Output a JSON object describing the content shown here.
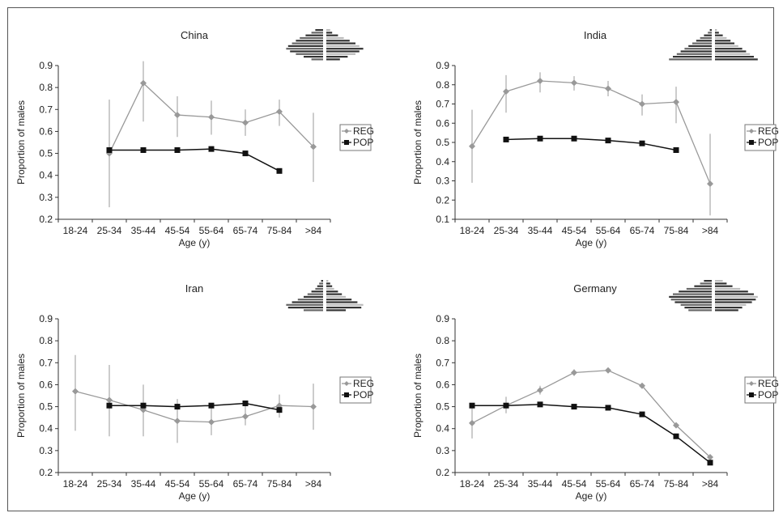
{
  "colors": {
    "REG": "#999999",
    "POP": "#111111",
    "axis": "#333333",
    "frame": "#555555",
    "pyramid_dark": "#333333",
    "pyramid_light": "#bbbbbb"
  },
  "chart_data": [
    {
      "type": "line",
      "title": "China",
      "xlabel": "Age (y)",
      "ylabel": "Proportion of males",
      "categories": [
        "18-24",
        "25-34",
        "35-44",
        "45-54",
        "55-64",
        "65-74",
        "75-84",
        ">84"
      ],
      "ylim": [
        0.2,
        0.9
      ],
      "yticks": [
        "0.2",
        "0.3",
        "0.4",
        "0.5",
        "0.6",
        "0.7",
        "0.8",
        "0.9"
      ],
      "legend": "right",
      "series": [
        {
          "name": "REG",
          "values": [
            null,
            0.5,
            0.82,
            0.675,
            0.665,
            0.64,
            0.69,
            0.53
          ],
          "err_low": [
            null,
            0.255,
            0.645,
            0.575,
            0.585,
            0.58,
            0.625,
            0.37
          ],
          "err_high": [
            null,
            0.745,
            0.92,
            0.76,
            0.74,
            0.7,
            0.745,
            0.685
          ]
        },
        {
          "name": "POP",
          "values": [
            null,
            0.515,
            0.515,
            0.515,
            0.52,
            0.5,
            0.42,
            null
          ]
        }
      ],
      "pyramid": {
        "left": [
          4,
          6,
          9,
          12,
          14,
          16,
          18,
          19,
          17,
          14,
          10,
          6
        ],
        "right": [
          2,
          3,
          6,
          9,
          12,
          15,
          17,
          19,
          17,
          15,
          11,
          7
        ]
      }
    },
    {
      "type": "line",
      "title": "India",
      "xlabel": "Age (y)",
      "ylabel": "Proportion of males",
      "categories": [
        "18-24",
        "25-34",
        "35-44",
        "45-54",
        "55-64",
        "65-74",
        "75-84",
        ">84"
      ],
      "ylim": [
        0.1,
        0.9
      ],
      "yticks": [
        "0.1",
        "0.2",
        "0.3",
        "0.4",
        "0.5",
        "0.6",
        "0.7",
        "0.8",
        "0.9"
      ],
      "legend": "right",
      "series": [
        {
          "name": "REG",
          "values": [
            0.48,
            0.765,
            0.82,
            0.81,
            0.78,
            0.7,
            0.71,
            0.285
          ],
          "err_low": [
            0.29,
            0.655,
            0.76,
            0.77,
            0.74,
            0.64,
            0.6,
            0.12
          ],
          "err_high": [
            0.67,
            0.85,
            0.865,
            0.845,
            0.82,
            0.75,
            0.79,
            0.545
          ]
        },
        {
          "name": "POP",
          "values": [
            null,
            0.515,
            0.52,
            0.52,
            0.51,
            0.495,
            0.46,
            null
          ]
        }
      ],
      "pyramid": {
        "left": [
          1,
          2,
          4,
          6,
          8,
          10,
          12,
          14,
          16,
          18,
          20,
          22
        ],
        "right": [
          1,
          2,
          4,
          6,
          8,
          10,
          12,
          14,
          16,
          18,
          20,
          22
        ]
      }
    },
    {
      "type": "line",
      "title": "Iran",
      "xlabel": "Age (y)",
      "ylabel": "Proportion of males",
      "categories": [
        "18-24",
        "25-34",
        "35-44",
        "45-54",
        "55-64",
        "65-74",
        "75-84",
        ">84"
      ],
      "ylim": [
        0.2,
        0.9
      ],
      "yticks": [
        "0.2",
        "0.3",
        "0.4",
        "0.5",
        "0.6",
        "0.7",
        "0.8",
        "0.9"
      ],
      "legend": "right",
      "series": [
        {
          "name": "REG",
          "values": [
            0.57,
            0.53,
            0.485,
            0.435,
            0.43,
            0.455,
            0.505,
            0.5
          ],
          "err_low": [
            0.39,
            0.365,
            0.365,
            0.335,
            0.37,
            0.415,
            0.45,
            0.395
          ],
          "err_high": [
            0.735,
            0.69,
            0.6,
            0.535,
            0.495,
            0.51,
            0.555,
            0.605
          ]
        },
        {
          "name": "POP",
          "values": [
            null,
            0.505,
            0.505,
            0.5,
            0.505,
            0.515,
            0.485,
            null
          ]
        }
      ],
      "pyramid": {
        "left": [
          1,
          2,
          3,
          4,
          6,
          8,
          10,
          13,
          16,
          19,
          18,
          10
        ],
        "right": [
          1,
          2,
          3,
          4,
          6,
          8,
          10,
          13,
          16,
          19,
          18,
          10
        ]
      }
    },
    {
      "type": "line",
      "title": "Germany",
      "xlabel": "Age (y)",
      "ylabel": "Proportion of males",
      "categories": [
        "18-24",
        "25-34",
        "35-44",
        "45-54",
        "55-64",
        "65-74",
        "75-84",
        ">84"
      ],
      "ylim": [
        0.2,
        0.9
      ],
      "yticks": [
        "0.2",
        "0.3",
        "0.4",
        "0.5",
        "0.6",
        "0.7",
        "0.8",
        "0.9"
      ],
      "legend": "right",
      "series": [
        {
          "name": "REG",
          "values": [
            0.425,
            0.505,
            0.575,
            0.655,
            0.665,
            0.595,
            0.415,
            0.27
          ],
          "err_low": [
            0.355,
            0.47,
            0.555,
            0.64,
            0.655,
            0.585,
            0.405,
            0.26
          ],
          "err_high": [
            0.495,
            0.545,
            0.595,
            0.67,
            0.675,
            0.605,
            0.425,
            0.28
          ]
        },
        {
          "name": "POP",
          "values": [
            0.505,
            0.505,
            0.51,
            0.5,
            0.495,
            0.465,
            0.365,
            0.245
          ]
        }
      ],
      "pyramid": {
        "left": [
          4,
          6,
          9,
          13,
          17,
          20,
          22,
          21,
          19,
          16,
          14,
          12
        ],
        "right": [
          4,
          6,
          9,
          13,
          17,
          20,
          22,
          21,
          19,
          16,
          14,
          12
        ]
      }
    }
  ]
}
